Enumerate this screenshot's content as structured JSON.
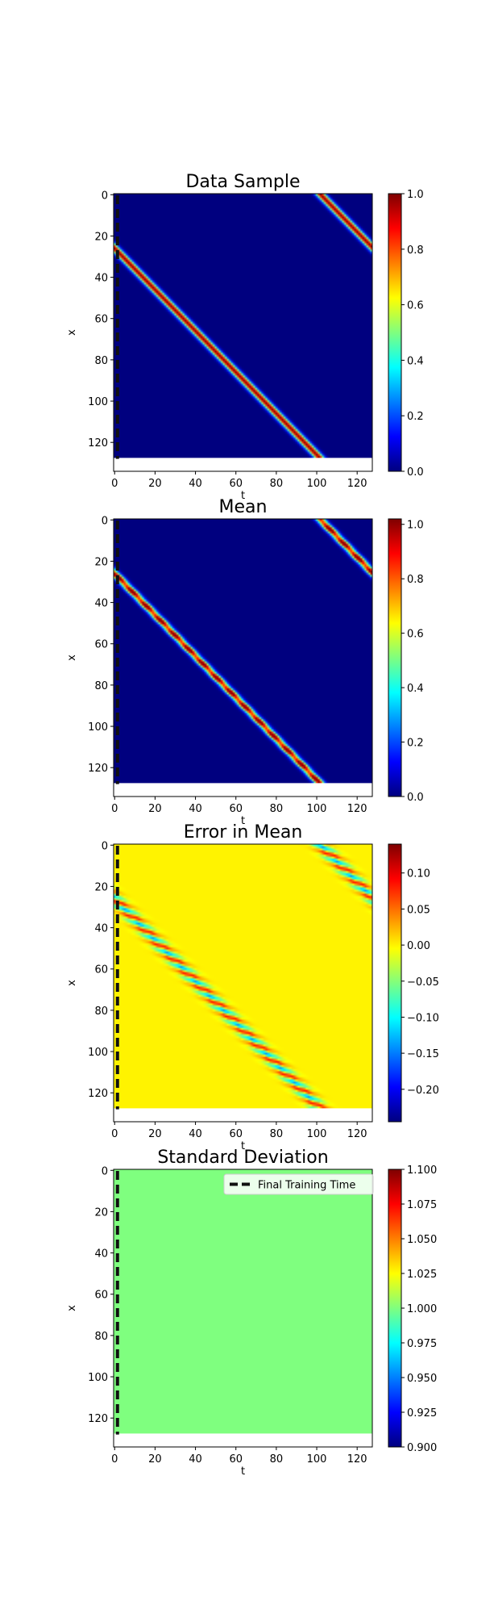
{
  "legend": {
    "label": "Final Training Time"
  },
  "colors": {
    "jet": [
      "#00007f",
      "#0000ff",
      "#007fff",
      "#00ffff",
      "#7fff7f",
      "#ffff00",
      "#ff7f00",
      "#ff0000",
      "#7f0000"
    ],
    "marker_line": "#111111"
  },
  "chart_data": [
    {
      "type": "heatmap",
      "name": "data-sample",
      "title": "Data Sample",
      "xlabel": "t",
      "ylabel": "x",
      "xticks": [
        0,
        20,
        40,
        60,
        80,
        100,
        120
      ],
      "yticks": [
        0,
        20,
        40,
        60,
        80,
        100,
        120
      ],
      "xlim": [
        -0.5,
        127.5
      ],
      "ylim": [
        134,
        -0.5
      ],
      "grid_rows": 128,
      "grid_cols": 128,
      "band": {
        "x_at_t0": 26,
        "slope": 1.0,
        "width": 3.3,
        "ripple": 0.0
      },
      "colorbar": {
        "min": 0.0,
        "max": 1.0,
        "ticks": [
          "0.0",
          "0.2",
          "0.4",
          "0.6",
          "0.8",
          "1.0"
        ]
      },
      "final_training_time": 1,
      "legend": false
    },
    {
      "type": "heatmap",
      "name": "mean",
      "title": "Mean",
      "xlabel": "t",
      "ylabel": "x",
      "xticks": [
        0,
        20,
        40,
        60,
        80,
        100,
        120
      ],
      "yticks": [
        0,
        20,
        40,
        60,
        80,
        100,
        120
      ],
      "xlim": [
        -0.5,
        127.5
      ],
      "ylim": [
        134,
        -0.5
      ],
      "grid_rows": 128,
      "grid_cols": 128,
      "band": {
        "x_at_t0": 26,
        "slope": 1.0,
        "width": 3.3,
        "ripple": 0.15
      },
      "colorbar": {
        "min": 0.0,
        "max": 1.02,
        "ticks": [
          "0.0",
          "0.2",
          "0.4",
          "0.6",
          "0.8",
          "1.0"
        ]
      },
      "final_training_time": 1,
      "legend": false
    },
    {
      "type": "heatmap",
      "name": "error-in-mean",
      "title": "Error in Mean",
      "xlabel": "t",
      "ylabel": "x",
      "xticks": [
        0,
        20,
        40,
        60,
        80,
        100,
        120
      ],
      "yticks": [
        0,
        20,
        40,
        60,
        80,
        100,
        120
      ],
      "xlim": [
        -0.5,
        127.5
      ],
      "ylim": [
        134,
        -0.5
      ],
      "grid_rows": 128,
      "grid_cols": 128,
      "band": {
        "x_at_t0": 26,
        "slope": 1.0,
        "width": 5.5,
        "ripple": 1.0
      },
      "colorbar": {
        "min": -0.245,
        "max": 0.14,
        "ticks": [
          "0.10",
          "0.05",
          "0.00",
          "−0.05",
          "−0.10",
          "−0.15",
          "−0.20"
        ],
        "tick_values": [
          0.1,
          0.05,
          0.0,
          -0.05,
          -0.1,
          -0.15,
          -0.2
        ]
      },
      "final_training_time": 1,
      "legend": false
    },
    {
      "type": "heatmap",
      "name": "standard-deviation",
      "title": "Standard Deviation",
      "xlabel": "t",
      "ylabel": "x",
      "xticks": [
        0,
        20,
        40,
        60,
        80,
        100,
        120
      ],
      "yticks": [
        0,
        20,
        40,
        60,
        80,
        100,
        120
      ],
      "xlim": [
        -0.5,
        127.5
      ],
      "ylim": [
        134,
        -0.5
      ],
      "grid_rows": 128,
      "grid_cols": 128,
      "constant_value": 1.0,
      "colorbar": {
        "min": 0.9,
        "max": 1.1,
        "ticks": [
          "0.900",
          "0.925",
          "0.950",
          "0.975",
          "1.000",
          "1.025",
          "1.050",
          "1.075",
          "1.100"
        ]
      },
      "final_training_time": 1,
      "legend": true,
      "legend_position": "top-right"
    }
  ]
}
